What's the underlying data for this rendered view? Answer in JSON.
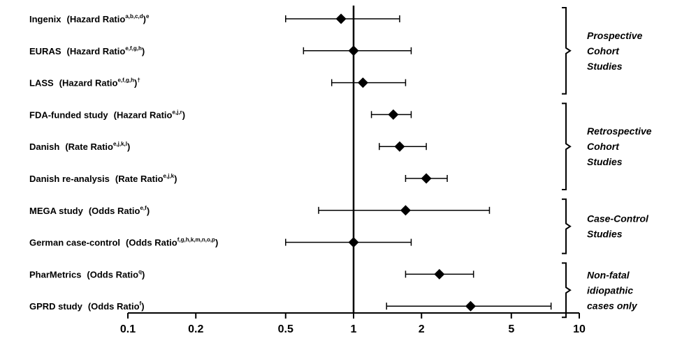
{
  "chart_data": {
    "type": "forest",
    "x_scale": "log",
    "xlim": [
      0.1,
      10
    ],
    "reference_line": 1,
    "grid": false,
    "x_ticks": [
      {
        "value": 0.1,
        "label": "0.1"
      },
      {
        "value": 0.2,
        "label": "0.2"
      },
      {
        "value": 0.5,
        "label": "0.5"
      },
      {
        "value": 1,
        "label": "1"
      },
      {
        "value": 2,
        "label": "2"
      },
      {
        "value": 5,
        "label": "5"
      },
      {
        "value": 10,
        "label": "10"
      }
    ],
    "rows": [
      {
        "name": "Ingenix",
        "measure": "(Hazard Ratio",
        "sup": "a,b,c,d",
        "suffix": ")",
        "suffix_sup": "e",
        "estimate": 0.88,
        "lower": 0.5,
        "upper": 1.6
      },
      {
        "name": "EURAS",
        "measure": "(Hazard Ratio",
        "sup": "e,f,g,h",
        "suffix": ")",
        "suffix_sup": "",
        "estimate": 1.0,
        "lower": 0.6,
        "upper": 1.8
      },
      {
        "name": "LASS",
        "measure": "(Hazard Ratio",
        "sup": "e,f,g,h",
        "suffix": ")",
        "suffix_sup": "†",
        "estimate": 1.1,
        "lower": 0.8,
        "upper": 1.7
      },
      {
        "name": "FDA-funded study",
        "measure": "(Hazard Ratio",
        "sup": "e,j,r",
        "suffix": ")",
        "suffix_sup": "",
        "estimate": 1.5,
        "lower": 1.2,
        "upper": 1.8
      },
      {
        "name": "Danish",
        "measure": "(Rate Ratio",
        "sup": "e,j,k,l",
        "suffix": ")",
        "suffix_sup": "",
        "estimate": 1.6,
        "lower": 1.3,
        "upper": 2.1
      },
      {
        "name": "Danish re-analysis",
        "measure": "(Rate Ratio",
        "sup": "e,j,k",
        "suffix": ")",
        "suffix_sup": "",
        "estimate": 2.1,
        "lower": 1.7,
        "upper": 2.6
      },
      {
        "name": "MEGA study",
        "measure": "(Odds Ratio",
        "sup": "e,f",
        "suffix": ")",
        "suffix_sup": "",
        "estimate": 1.7,
        "lower": 0.7,
        "upper": 4.0
      },
      {
        "name": "German case-control",
        "measure": "(Odds Ratio",
        "sup": "f,g,h,k,m,n,o,p",
        "suffix": ")",
        "suffix_sup": "",
        "estimate": 1.0,
        "lower": 0.5,
        "upper": 1.8
      },
      {
        "name": "PharMetrics",
        "measure": "(Odds Ratio",
        "sup": "q",
        "suffix": ")",
        "suffix_sup": "",
        "estimate": 2.4,
        "lower": 1.7,
        "upper": 3.4
      },
      {
        "name": "GPRD study",
        "measure": "(Odds Ratio",
        "sup": "f",
        "suffix": ")",
        "suffix_sup": "",
        "estimate": 3.3,
        "lower": 1.4,
        "upper": 7.5
      }
    ],
    "groups": [
      {
        "lines": [
          "Prospective",
          "Cohort",
          "Studies"
        ],
        "first_row": 0,
        "last_row": 2
      },
      {
        "lines": [
          "Retrospective",
          "Cohort",
          "Studies"
        ],
        "first_row": 3,
        "last_row": 5
      },
      {
        "lines": [
          "Case-Control",
          "Studies"
        ],
        "first_row": 6,
        "last_row": 7
      },
      {
        "lines": [
          "Non-fatal",
          "idiopathic",
          "cases only"
        ],
        "first_row": 8,
        "last_row": 9
      }
    ]
  }
}
